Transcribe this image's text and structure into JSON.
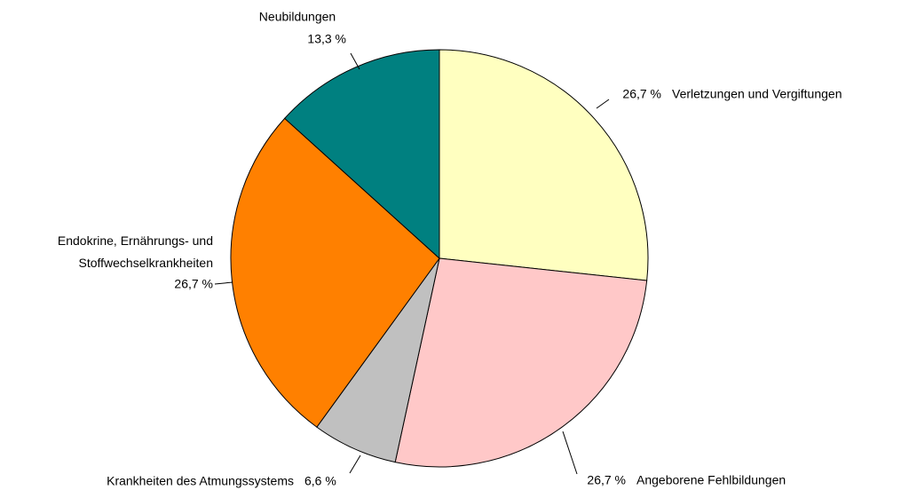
{
  "chart_data": {
    "type": "pie",
    "categories": [
      "Verletzungen und Vergiftungen",
      "Angeborene Fehlbildungen",
      "Krankheiten des Atmungssystems",
      "Endokrine, Ernährungs- und\nStoffwechselkrankheiten",
      "Neubildungen"
    ],
    "values": [
      26.7,
      26.7,
      6.6,
      26.7,
      13.3
    ],
    "value_labels": [
      "26,7 %",
      "26,7 %",
      "6,6 %",
      "26,7 %",
      "13,3 %"
    ],
    "colors": [
      "#ffffc0",
      "#ffc8c8",
      "#c0c0c0",
      "#ff8000",
      "#008080"
    ]
  }
}
